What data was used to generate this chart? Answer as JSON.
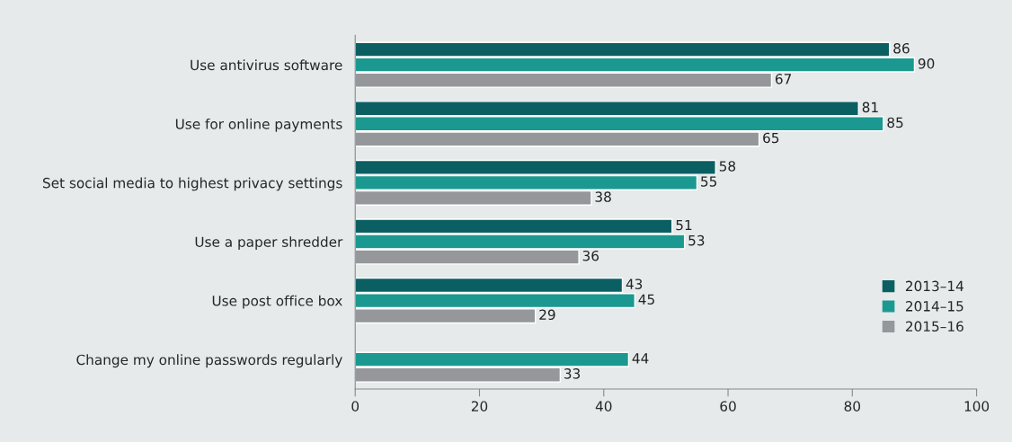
{
  "chart_data": {
    "type": "bar",
    "orientation": "horizontal",
    "data_labels": true,
    "legend": "bottom right",
    "grid": false,
    "categories": [
      "Use antivirus software",
      "Use for online payments",
      "Set social media to highest privacy settings",
      "Use a paper shredder",
      "Use post office box",
      "Change my online passwords regularly"
    ],
    "series": [
      {
        "name": "2013–14",
        "color": "#0b5f63",
        "values": [
          86,
          81,
          58,
          51,
          43,
          null
        ]
      },
      {
        "name": "2014–15",
        "color": "#1b9990",
        "values": [
          90,
          85,
          55,
          53,
          45,
          44
        ]
      },
      {
        "name": "2015–16",
        "color": "#95979b",
        "values": [
          67,
          65,
          38,
          36,
          29,
          33
        ]
      }
    ],
    "xlim": [
      0,
      100
    ],
    "xticks": [
      0,
      20,
      40,
      60,
      80,
      100
    ]
  }
}
